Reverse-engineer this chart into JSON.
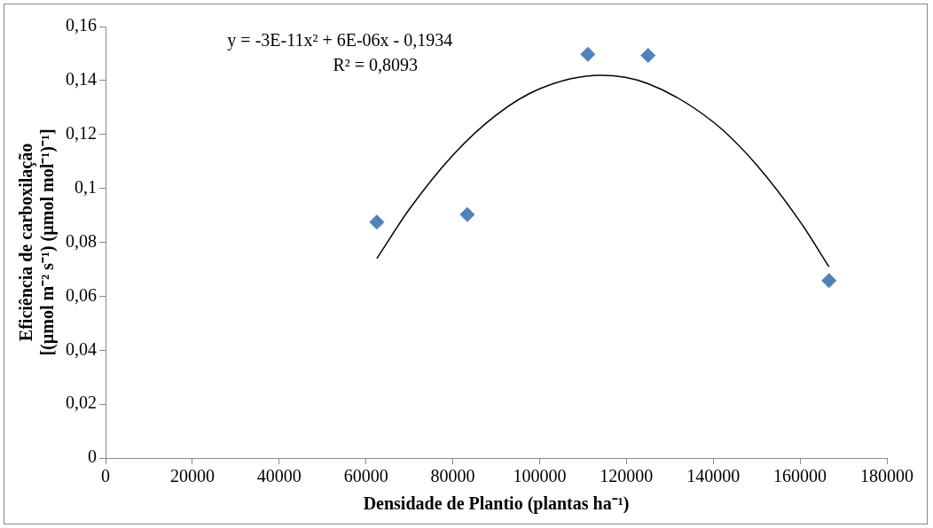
{
  "chart_data": {
    "type": "scatter",
    "xlabel": "Densidade de Plantio (plantas ha⁻¹)",
    "ylabel": "Eficiência de carboxilação\n[(µmol m⁻² s⁻¹) (µmol mol⁻¹)⁻¹]",
    "annotations": [
      "y = -3E-11x² + 6E-06x - 0,1934",
      "R² = 0,8093"
    ],
    "xlim": [
      0,
      180000
    ],
    "xticks": [
      0,
      20000,
      40000,
      60000,
      80000,
      100000,
      120000,
      140000,
      160000,
      180000
    ],
    "ylim": [
      0,
      0.16
    ],
    "yticks": [
      0,
      {
        "value": 0.02,
        "label": "0,02"
      },
      {
        "value": 0.04,
        "label": "0,04"
      },
      {
        "value": 0.06,
        "label": "0,06"
      },
      {
        "value": 0.08,
        "label": "0,08"
      },
      {
        "value": 0.1,
        "label": "0,1"
      },
      {
        "value": 0.12,
        "label": "0,12"
      },
      {
        "value": 0.14,
        "label": "0,14"
      },
      {
        "value": 0.16,
        "label": "0,16"
      }
    ],
    "grid": false,
    "legend": false,
    "series": [
      {
        "marker": "diamond",
        "color": "#4f81bd",
        "x": [
          62500,
          83333,
          111111,
          125000,
          166667
        ],
        "values": [
          0.0875,
          0.0903,
          0.1497,
          0.1493,
          0.0658
        ]
      },
      {
        "type": "line",
        "marker": "none",
        "color": "#000000",
        "x": [
          62500,
          70000,
          80000,
          90000,
          100000,
          114000,
          125000,
          140000,
          150000,
          160000,
          166667
        ],
        "values": [
          0.074,
          0.0923,
          0.1123,
          0.1272,
          0.1369,
          0.1419,
          0.1388,
          0.1246,
          0.1087,
          0.0877,
          0.0709
        ]
      }
    ]
  }
}
